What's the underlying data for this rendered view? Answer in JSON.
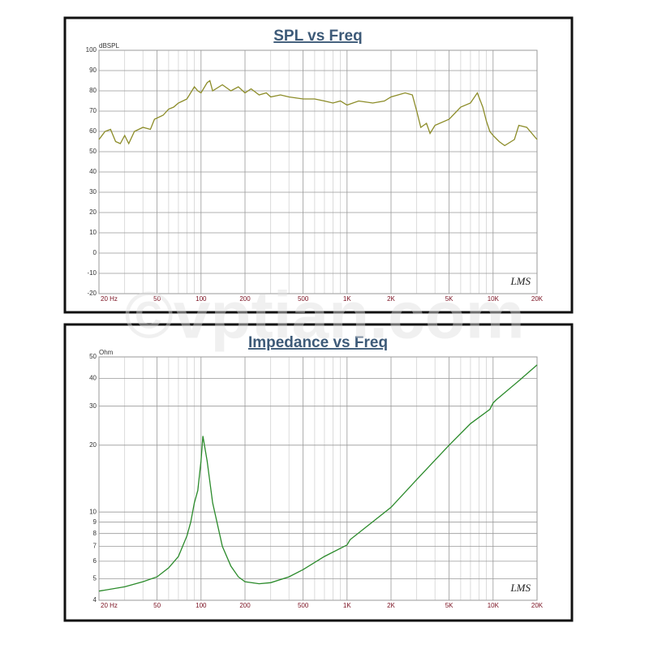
{
  "chart_data": [
    {
      "type": "line",
      "title": "SPL vs Freq",
      "ylabel": "dBSPL",
      "logo": "LMS",
      "xlog": true,
      "ylog": false,
      "grid": true,
      "xlim": [
        20,
        20000
      ],
      "ylim": [
        -20,
        100
      ],
      "xticks": [
        {
          "value": 20,
          "label": "20 Hz"
        },
        50,
        100,
        200,
        500,
        {
          "value": 1000,
          "label": "1K"
        },
        {
          "value": 2000,
          "label": "2K"
        },
        {
          "value": 5000,
          "label": "5K"
        },
        {
          "value": 10000,
          "label": "10K"
        },
        {
          "value": 20000,
          "label": "20K"
        }
      ],
      "xgrid_minor": [
        30,
        40,
        60,
        70,
        80,
        90,
        300,
        400,
        600,
        700,
        800,
        900,
        3000,
        4000,
        6000,
        7000,
        8000,
        9000
      ],
      "yticks": [
        -20,
        -10,
        0,
        10,
        20,
        30,
        40,
        50,
        60,
        70,
        80,
        90,
        100
      ],
      "series": [
        {
          "name": "SPL",
          "color": "#8c8c28",
          "x": [
            20,
            22,
            24,
            26,
            28,
            30,
            32,
            35,
            40,
            45,
            48,
            55,
            60,
            65,
            70,
            75,
            80,
            90,
            95,
            100,
            110,
            115,
            120,
            140,
            160,
            180,
            200,
            220,
            250,
            280,
            300,
            350,
            400,
            500,
            600,
            700,
            800,
            900,
            1000,
            1200,
            1500,
            1800,
            2000,
            2500,
            2800,
            3000,
            3200,
            3500,
            3700,
            4000,
            5000,
            6000,
            7000,
            7800,
            8500,
            9000,
            9500,
            10000,
            11000,
            12000,
            14000,
            15000,
            17000,
            20000
          ],
          "values": [
            56,
            60,
            61,
            55,
            54,
            58,
            54,
            60,
            62,
            61,
            66,
            68,
            71,
            72,
            74,
            75,
            76,
            82,
            80,
            79,
            84,
            85,
            80,
            83,
            80,
            82,
            79,
            81,
            78,
            79,
            77,
            78,
            77,
            76,
            76,
            75,
            74,
            75,
            73,
            75,
            74,
            75,
            77,
            79,
            78,
            70,
            62,
            64,
            59,
            63,
            66,
            72,
            74,
            79,
            72,
            65,
            60,
            58,
            55,
            53,
            56,
            63,
            62,
            56
          ]
        }
      ]
    },
    {
      "type": "line",
      "title": "Impedance vs Freq",
      "ylabel": "Ohm",
      "logo": "LMS",
      "xlog": true,
      "ylog": true,
      "grid": true,
      "xlim": [
        20,
        20000
      ],
      "ylim": [
        4,
        50
      ],
      "xticks": [
        {
          "value": 20,
          "label": "20 Hz"
        },
        50,
        100,
        200,
        500,
        {
          "value": 1000,
          "label": "1K"
        },
        {
          "value": 2000,
          "label": "2K"
        },
        {
          "value": 5000,
          "label": "5K"
        },
        {
          "value": 10000,
          "label": "10K"
        },
        {
          "value": 20000,
          "label": "20K"
        }
      ],
      "xgrid_minor": [
        30,
        40,
        60,
        70,
        80,
        90,
        300,
        400,
        600,
        700,
        800,
        900,
        3000,
        4000,
        6000,
        7000,
        8000,
        9000
      ],
      "yticks": [
        4,
        5,
        6,
        7,
        8,
        9,
        10,
        20,
        30,
        40,
        50
      ],
      "series": [
        {
          "name": "Impedance",
          "color": "#2a8a2a",
          "x": [
            20,
            30,
            40,
            50,
            60,
            70,
            80,
            85,
            90,
            95,
            100,
            103,
            110,
            120,
            140,
            160,
            180,
            200,
            250,
            300,
            400,
            500,
            700,
            1000,
            1050,
            2000,
            3000,
            5000,
            7000,
            9500,
            10000,
            10500,
            15000,
            20000
          ],
          "values": [
            4.4,
            4.6,
            4.85,
            5.1,
            5.6,
            6.3,
            7.8,
            9,
            11,
            12.5,
            17,
            22,
            17,
            11,
            7,
            5.7,
            5.1,
            4.85,
            4.75,
            4.8,
            5.1,
            5.5,
            6.3,
            7.1,
            7.5,
            10.5,
            14,
            20,
            25,
            29,
            31,
            32,
            39,
            46
          ]
        }
      ]
    }
  ],
  "watermark": "©vptian.com"
}
